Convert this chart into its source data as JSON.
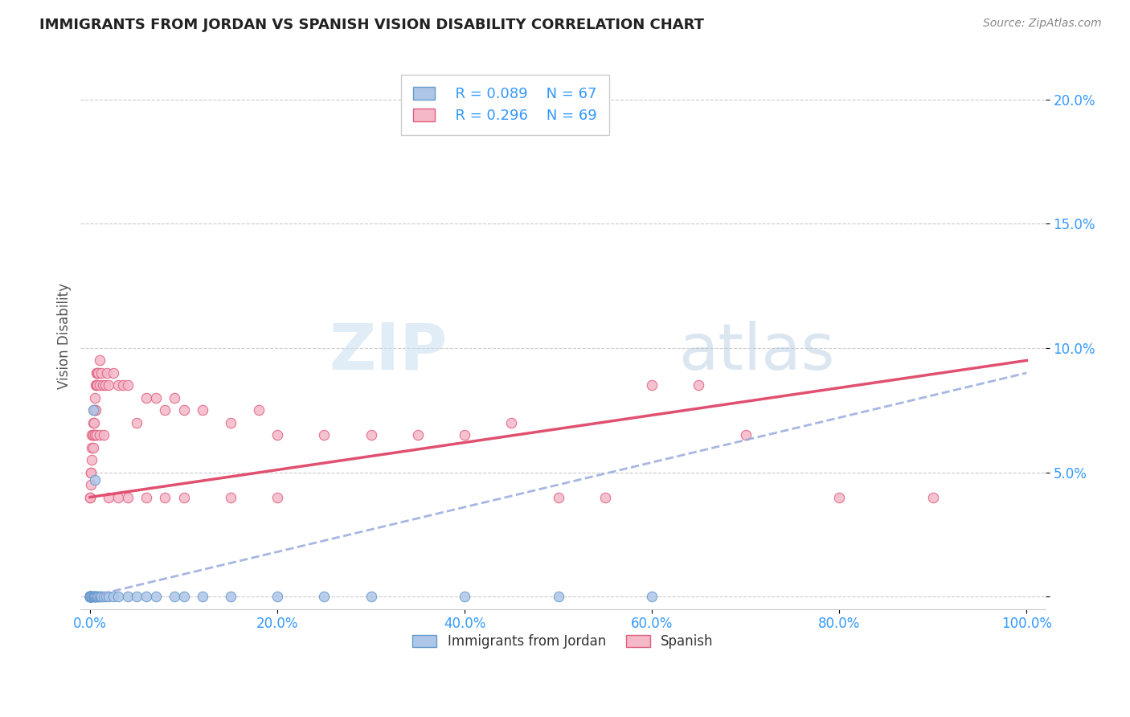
{
  "title": "IMMIGRANTS FROM JORDAN VS SPANISH VISION DISABILITY CORRELATION CHART",
  "source": "Source: ZipAtlas.com",
  "ylabel": "Vision Disability",
  "xlabel": "",
  "watermark_zip": "ZIP",
  "watermark_atlas": "atlas",
  "legend_jordan": "Immigrants from Jordan",
  "legend_spanish": "Spanish",
  "r_jordan": "R = 0.089",
  "n_jordan": "N = 67",
  "r_spanish": "R = 0.296",
  "n_spanish": "N = 69",
  "xlim": [
    -0.01,
    1.02
  ],
  "ylim": [
    -0.005,
    0.215
  ],
  "xticks": [
    0.0,
    0.2,
    0.4,
    0.6,
    0.8,
    1.0
  ],
  "yticks": [
    0.0,
    0.05,
    0.1,
    0.15,
    0.2
  ],
  "xtick_labels": [
    "0.0%",
    "20.0%",
    "40.0%",
    "60.0%",
    "80.0%",
    "100.0%"
  ],
  "ytick_labels": [
    "",
    "5.0%",
    "10.0%",
    "15.0%",
    "20.0%"
  ],
  "color_jordan": "#aec6e8",
  "color_jordan_edge": "#6699cc",
  "color_spanish": "#f4b8c8",
  "color_spanish_edge": "#e06080",
  "trendline_jordan_color": "#99aadd",
  "trendline_spanish_color": "#e05070",
  "jordan_x": [
    0.0,
    0.0,
    0.0,
    0.0,
    0.0,
    0.0,
    0.0,
    0.0,
    0.0,
    0.0,
    0.0,
    0.0,
    0.0,
    0.0,
    0.0,
    0.0,
    0.0,
    0.0,
    0.0,
    0.0,
    0.0,
    0.0,
    0.0,
    0.0,
    0.0,
    0.0,
    0.0,
    0.0,
    0.0,
    0.0,
    0.001,
    0.002,
    0.002,
    0.003,
    0.003,
    0.004,
    0.004,
    0.005,
    0.005,
    0.006,
    0.007,
    0.008,
    0.009,
    0.01,
    0.011,
    0.012,
    0.015,
    0.017,
    0.02,
    0.025,
    0.03,
    0.04,
    0.05,
    0.06,
    0.07,
    0.09,
    0.1,
    0.12,
    0.15,
    0.2,
    0.25,
    0.3,
    0.4,
    0.5,
    0.6,
    0.003,
    0.005
  ],
  "jordan_y": [
    0.0,
    0.0,
    0.0,
    0.0,
    0.0,
    0.0,
    0.0,
    0.0,
    0.0,
    0.0,
    0.0,
    0.0,
    0.0,
    0.0,
    0.0,
    0.0,
    0.0,
    0.0,
    0.0,
    0.0,
    0.0,
    0.0,
    0.0,
    0.0,
    0.0,
    0.0,
    0.0,
    0.0,
    0.0,
    0.0,
    0.0,
    0.0,
    0.0,
    0.0,
    0.0,
    0.0,
    0.0,
    0.0,
    0.0,
    0.0,
    0.0,
    0.0,
    0.0,
    0.0,
    0.0,
    0.0,
    0.0,
    0.0,
    0.0,
    0.0,
    0.0,
    0.0,
    0.0,
    0.0,
    0.0,
    0.0,
    0.0,
    0.0,
    0.0,
    0.0,
    0.0,
    0.0,
    0.0,
    0.0,
    0.0,
    0.075,
    0.047
  ],
  "spanish_x": [
    0.0,
    0.0,
    0.001,
    0.001,
    0.001,
    0.002,
    0.002,
    0.002,
    0.003,
    0.003,
    0.003,
    0.004,
    0.004,
    0.004,
    0.005,
    0.005,
    0.006,
    0.006,
    0.007,
    0.007,
    0.008,
    0.008,
    0.009,
    0.01,
    0.01,
    0.012,
    0.014,
    0.016,
    0.018,
    0.02,
    0.025,
    0.03,
    0.035,
    0.04,
    0.05,
    0.06,
    0.07,
    0.08,
    0.09,
    0.1,
    0.12,
    0.15,
    0.18,
    0.2,
    0.25,
    0.3,
    0.35,
    0.4,
    0.45,
    0.5,
    0.55,
    0.6,
    0.65,
    0.7,
    0.8,
    0.9,
    0.003,
    0.005,
    0.007,
    0.01,
    0.015,
    0.02,
    0.03,
    0.04,
    0.06,
    0.08,
    0.1,
    0.15,
    0.2
  ],
  "spanish_y": [
    0.04,
    0.04,
    0.05,
    0.05,
    0.045,
    0.065,
    0.06,
    0.055,
    0.07,
    0.065,
    0.06,
    0.075,
    0.07,
    0.065,
    0.08,
    0.075,
    0.085,
    0.075,
    0.09,
    0.085,
    0.09,
    0.085,
    0.09,
    0.095,
    0.085,
    0.09,
    0.085,
    0.085,
    0.09,
    0.085,
    0.09,
    0.085,
    0.085,
    0.085,
    0.07,
    0.08,
    0.08,
    0.075,
    0.08,
    0.075,
    0.075,
    0.07,
    0.075,
    0.065,
    0.065,
    0.065,
    0.065,
    0.065,
    0.07,
    0.04,
    0.04,
    0.085,
    0.085,
    0.065,
    0.04,
    0.04,
    0.065,
    0.065,
    0.065,
    0.065,
    0.065,
    0.04,
    0.04,
    0.04,
    0.04,
    0.04,
    0.04,
    0.04,
    0.04
  ],
  "trendline_jordan_x0": 0.0,
  "trendline_jordan_x1": 1.0,
  "trendline_jordan_y0": 0.0,
  "trendline_jordan_y1": 0.09,
  "trendline_spanish_x0": 0.0,
  "trendline_spanish_x1": 1.0,
  "trendline_spanish_y0": 0.04,
  "trendline_spanish_y1": 0.095
}
